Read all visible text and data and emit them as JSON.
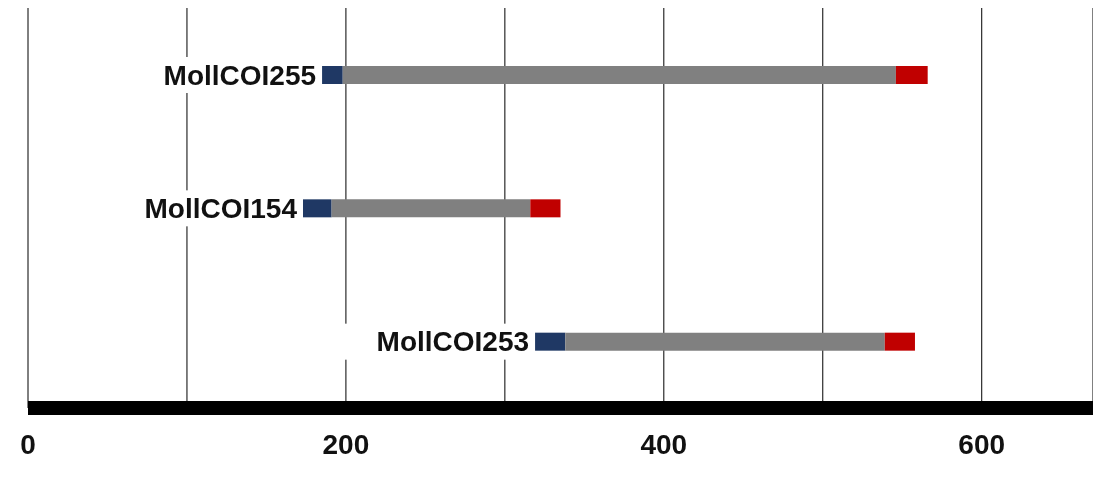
{
  "chart_data": {
    "type": "bar",
    "orientation": "horizontal",
    "categories": [
      "MollCOI255",
      "MollCOI154",
      "MollCOI253"
    ],
    "series": [
      {
        "color": "#1f3864",
        "base": [
          185,
          173,
          319
        ],
        "values": [
          13,
          18,
          19
        ]
      },
      {
        "color": "#808080",
        "base": [
          198,
          191,
          338
        ],
        "values": [
          348,
          125,
          201
        ]
      },
      {
        "color": "#c00000",
        "base": [
          546,
          316,
          539
        ],
        "values": [
          20,
          19,
          19
        ]
      }
    ],
    "xlim": [
      0,
      670
    ],
    "xticks": [
      0,
      {
        "value": 100,
        "label": null
      },
      200,
      {
        "value": 300,
        "label": null
      },
      400,
      {
        "value": 500,
        "label": null
      },
      600
    ],
    "grid": "x",
    "legend": false
  }
}
